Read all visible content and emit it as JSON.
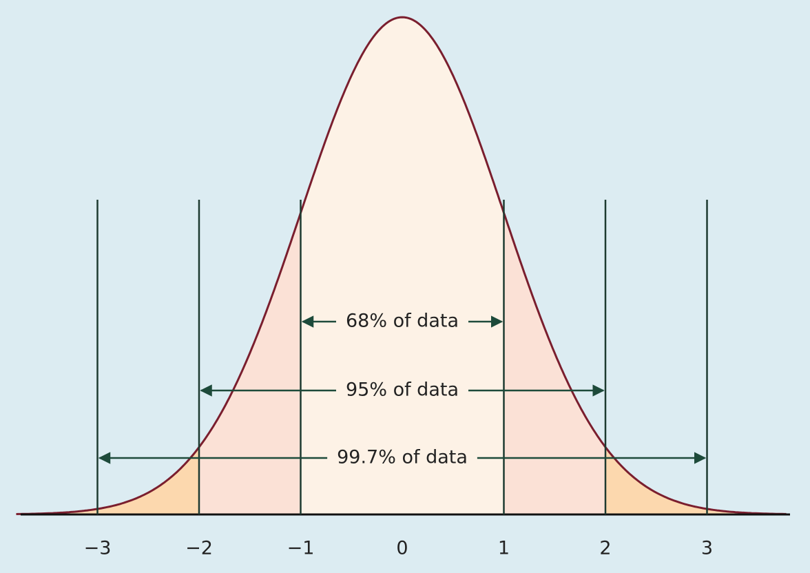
{
  "x_axis": {
    "ticks": [
      "−3",
      "−2",
      "−1",
      "0",
      "1",
      "2",
      "3"
    ]
  },
  "ranges": [
    {
      "label": "68% of data"
    },
    {
      "label": "95% of data"
    },
    {
      "label": "99.7% of data"
    }
  ]
}
